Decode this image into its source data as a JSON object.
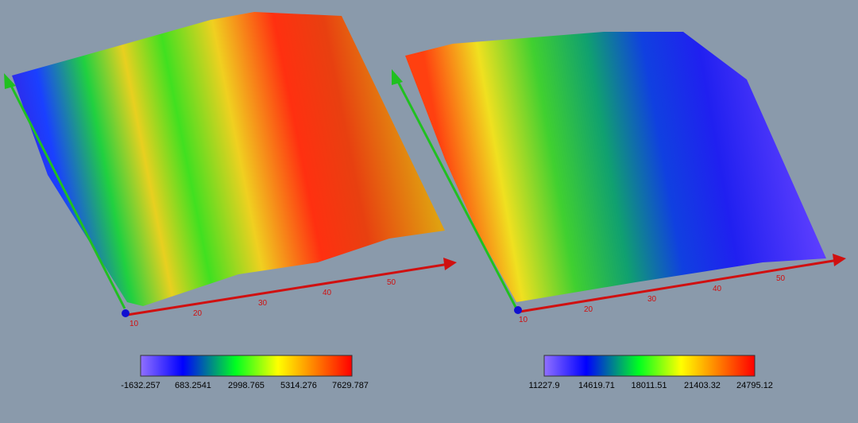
{
  "panels": [
    {
      "x_axis": {
        "ticks": [
          "10",
          "20",
          "30",
          "40",
          "50"
        ]
      },
      "colorbar": {
        "ticks": [
          "-1632.257",
          "683.2541",
          "2998.765",
          "5314.276",
          "7629.787"
        ]
      }
    },
    {
      "x_axis": {
        "ticks": [
          "10",
          "20",
          "30",
          "40",
          "50"
        ]
      },
      "colorbar": {
        "ticks": [
          "11227.9",
          "14619.71",
          "18011.51",
          "21403.32",
          "24795.12"
        ]
      }
    }
  ]
}
